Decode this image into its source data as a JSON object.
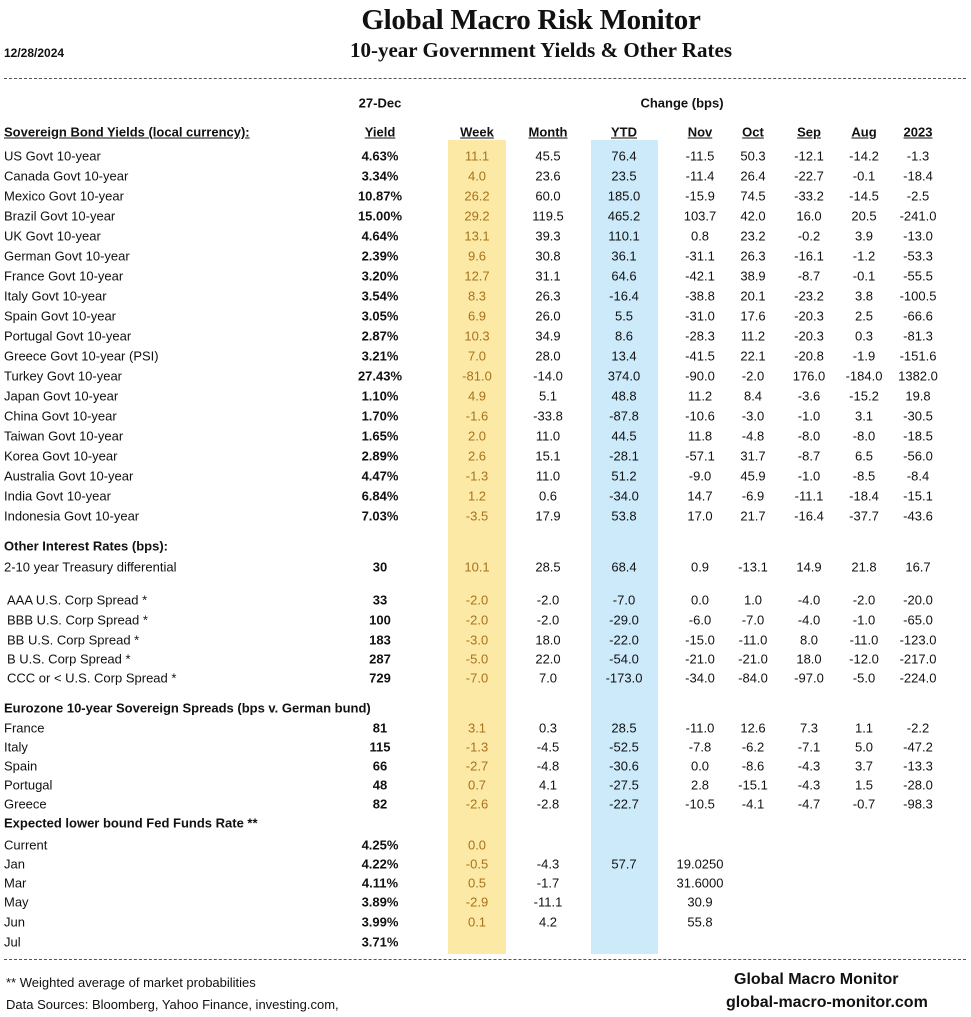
{
  "header": {
    "title": "Global Macro Risk Monitor",
    "subtitle": "10-year Government Yields & Other Rates",
    "date": "12/28/2024",
    "as_of": "27-Dec",
    "change_label": "Change (bps)"
  },
  "columns": [
    "Yield",
    "Week",
    "Month",
    "YTD",
    "Nov",
    "Oct",
    "Sep",
    "Aug",
    "2023"
  ],
  "colors": {
    "week_band": "#fde9a6",
    "ytd_band": "#cdeafa",
    "week_text": "#a8721c"
  },
  "sections": [
    {
      "title": "Sovereign Bond Yields (local currency):",
      "rows": [
        {
          "label": "US Govt 10-year",
          "values": [
            "4.63%",
            "11.1",
            "45.5",
            "76.4",
            "-11.5",
            "50.3",
            "-12.1",
            "-14.2",
            "-1.3"
          ]
        },
        {
          "label": "Canada Govt 10-year",
          "values": [
            "3.34%",
            "4.0",
            "23.6",
            "23.5",
            "-11.4",
            "26.4",
            "-22.7",
            "-0.1",
            "-18.4"
          ]
        },
        {
          "label": "Mexico Govt 10-year",
          "values": [
            "10.87%",
            "26.2",
            "60.0",
            "185.0",
            "-15.9",
            "74.5",
            "-33.2",
            "-14.5",
            "-2.5"
          ]
        },
        {
          "label": "Brazil Govt 10-year",
          "values": [
            "15.00%",
            "29.2",
            "119.5",
            "465.2",
            "103.7",
            "42.0",
            "16.0",
            "20.5",
            "-241.0"
          ]
        },
        {
          "label": "UK Govt 10-year",
          "values": [
            "4.64%",
            "13.1",
            "39.3",
            "110.1",
            "0.8",
            "23.2",
            "-0.2",
            "3.9",
            "-13.0"
          ]
        },
        {
          "label": "German Govt 10-year",
          "values": [
            "2.39%",
            "9.6",
            "30.8",
            "36.1",
            "-31.1",
            "26.3",
            "-16.1",
            "-1.2",
            "-53.3"
          ]
        },
        {
          "label": "France Govt 10-year",
          "values": [
            "3.20%",
            "12.7",
            "31.1",
            "64.6",
            "-42.1",
            "38.9",
            "-8.7",
            "-0.1",
            "-55.5"
          ]
        },
        {
          "label": "Italy Govt 10-year",
          "values": [
            "3.54%",
            "8.3",
            "26.3",
            "-16.4",
            "-38.8",
            "20.1",
            "-23.2",
            "3.8",
            "-100.5"
          ]
        },
        {
          "label": "Spain Govt 10-year",
          "values": [
            "3.05%",
            "6.9",
            "26.0",
            "5.5",
            "-31.0",
            "17.6",
            "-20.3",
            "2.5",
            "-66.6"
          ]
        },
        {
          "label": "Portugal Govt 10-year",
          "values": [
            "2.87%",
            "10.3",
            "34.9",
            "8.6",
            "-28.3",
            "11.2",
            "-20.3",
            "0.3",
            "-81.3"
          ]
        },
        {
          "label": "Greece Govt 10-year (PSI)",
          "values": [
            "3.21%",
            "7.0",
            "28.0",
            "13.4",
            "-41.5",
            "22.1",
            "-20.8",
            "-1.9",
            "-151.6"
          ]
        },
        {
          "label": "Turkey Govt 10-year",
          "values": [
            "27.43%",
            "-81.0",
            "-14.0",
            "374.0",
            "-90.0",
            "-2.0",
            "176.0",
            "-184.0",
            "1382.0"
          ]
        },
        {
          "label": "Japan Govt 10-year",
          "values": [
            "1.10%",
            "4.9",
            "5.1",
            "48.8",
            "11.2",
            "8.4",
            "-3.6",
            "-15.2",
            "19.8"
          ]
        },
        {
          "label": "China Govt 10-year",
          "values": [
            "1.70%",
            "-1.6",
            "-33.8",
            "-87.8",
            "-10.6",
            "-3.0",
            "-1.0",
            "3.1",
            "-30.5"
          ]
        },
        {
          "label": "Taiwan Govt 10-year",
          "values": [
            "1.65%",
            "2.0",
            "11.0",
            "44.5",
            "11.8",
            "-4.8",
            "-8.0",
            "-8.0",
            "-18.5"
          ]
        },
        {
          "label": "Korea Govt 10-year",
          "values": [
            "2.89%",
            "2.6",
            "15.1",
            "-28.1",
            "-57.1",
            "31.7",
            "-8.7",
            "6.5",
            "-56.0"
          ]
        },
        {
          "label": "Australia Govt 10-year",
          "values": [
            "4.47%",
            "-1.3",
            "11.0",
            "51.2",
            "-9.0",
            "45.9",
            "-1.0",
            "-8.5",
            "-8.4"
          ]
        },
        {
          "label": "India Govt 10-year",
          "values": [
            "6.84%",
            "1.2",
            "0.6",
            "-34.0",
            "14.7",
            "-6.9",
            "-11.1",
            "-18.4",
            "-15.1"
          ]
        },
        {
          "label": "Indonesia Govt 10-year",
          "values": [
            "7.03%",
            "-3.5",
            "17.9",
            "53.8",
            "17.0",
            "21.7",
            "-16.4",
            "-37.7",
            "-43.6"
          ]
        }
      ]
    },
    {
      "title": "Other Interest Rates  (bps):",
      "rows": [
        {
          "label": "2-10 year Treasury differential",
          "values": [
            "30",
            "10.1",
            "28.5",
            "68.4",
            "0.9",
            "-13.1",
            "14.9",
            "21.8",
            "16.7"
          ]
        },
        {
          "label": "AAA U.S. Corp Spread *",
          "values": [
            "33",
            "-2.0",
            "-2.0",
            "-7.0",
            "0.0",
            "1.0",
            "-4.0",
            "-2.0",
            "-20.0"
          ]
        },
        {
          "label": "BBB U.S. Corp Spread *",
          "values": [
            "100",
            "-2.0",
            "-2.0",
            "-29.0",
            "-6.0",
            "-7.0",
            "-4.0",
            "-1.0",
            "-65.0"
          ]
        },
        {
          "label": "BB U.S. Corp Spread *",
          "values": [
            "183",
            "-3.0",
            "18.0",
            "-22.0",
            "-15.0",
            "-11.0",
            "8.0",
            "-11.0",
            "-123.0"
          ]
        },
        {
          "label": "B U.S. Corp Spread *",
          "values": [
            "287",
            "-5.0",
            "22.0",
            "-54.0",
            "-21.0",
            "-21.0",
            "18.0",
            "-12.0",
            "-217.0"
          ]
        },
        {
          "label": "CCC or < U.S. Corp Spread *",
          "values": [
            "729",
            "-7.0",
            "7.0",
            "-173.0",
            "-34.0",
            "-84.0",
            "-97.0",
            "-5.0",
            "-224.0"
          ]
        }
      ]
    },
    {
      "title": "Eurozone 10-year Sovereign Spreads (bps v. German bund)",
      "rows": [
        {
          "label": "France",
          "values": [
            "81",
            "3.1",
            "0.3",
            "28.5",
            "-11.0",
            "12.6",
            "7.3",
            "1.1",
            "-2.2"
          ]
        },
        {
          "label": "Italy",
          "values": [
            "115",
            "-1.3",
            "-4.5",
            "-52.5",
            "-7.8",
            "-6.2",
            "-7.1",
            "5.0",
            "-47.2"
          ]
        },
        {
          "label": "Spain",
          "values": [
            "66",
            "-2.7",
            "-4.8",
            "-30.6",
            "0.0",
            "-8.6",
            "-4.3",
            "3.7",
            "-13.3"
          ]
        },
        {
          "label": "Portugal",
          "values": [
            "48",
            "0.7",
            "4.1",
            "-27.5",
            "2.8",
            "-15.1",
            "-4.3",
            "1.5",
            "-28.0"
          ]
        },
        {
          "label": "Greece",
          "values": [
            "82",
            "-2.6",
            "-2.8",
            "-22.7",
            "-10.5",
            "-4.1",
            "-4.7",
            "-0.7",
            "-98.3"
          ]
        }
      ]
    },
    {
      "title": "Expected lower bound Fed Funds Rate **",
      "rows": [
        {
          "label": "Current",
          "values": [
            "4.25%",
            "0.0",
            "",
            "",
            "",
            "",
            "",
            "",
            ""
          ]
        },
        {
          "label": "Jan",
          "values": [
            "4.22%",
            "-0.5",
            "-4.3",
            "57.7",
            "19.0250",
            "",
            "",
            "",
            ""
          ]
        },
        {
          "label": "Mar",
          "values": [
            "4.11%",
            "0.5",
            "-1.7",
            "",
            "31.6000",
            "",
            "",
            "",
            ""
          ]
        },
        {
          "label": "May",
          "values": [
            "3.89%",
            "-2.9",
            "-11.1",
            "",
            "30.9",
            "",
            "",
            "",
            ""
          ]
        },
        {
          "label": "Jun",
          "values": [
            "3.99%",
            "0.1",
            "4.2",
            "",
            "55.8",
            "",
            "",
            "",
            ""
          ]
        },
        {
          "label": "Jul",
          "values": [
            "3.71%",
            "",
            "",
            "",
            "",
            "",
            "",
            "",
            ""
          ]
        }
      ]
    }
  ],
  "footer": {
    "note": "** Weighted average of market probabilities",
    "sources": "Data Sources:  Bloomberg,  Yahoo Finance, investing.com,",
    "brand": "Global Macro Monitor",
    "website": "global-macro-monitor.com"
  }
}
